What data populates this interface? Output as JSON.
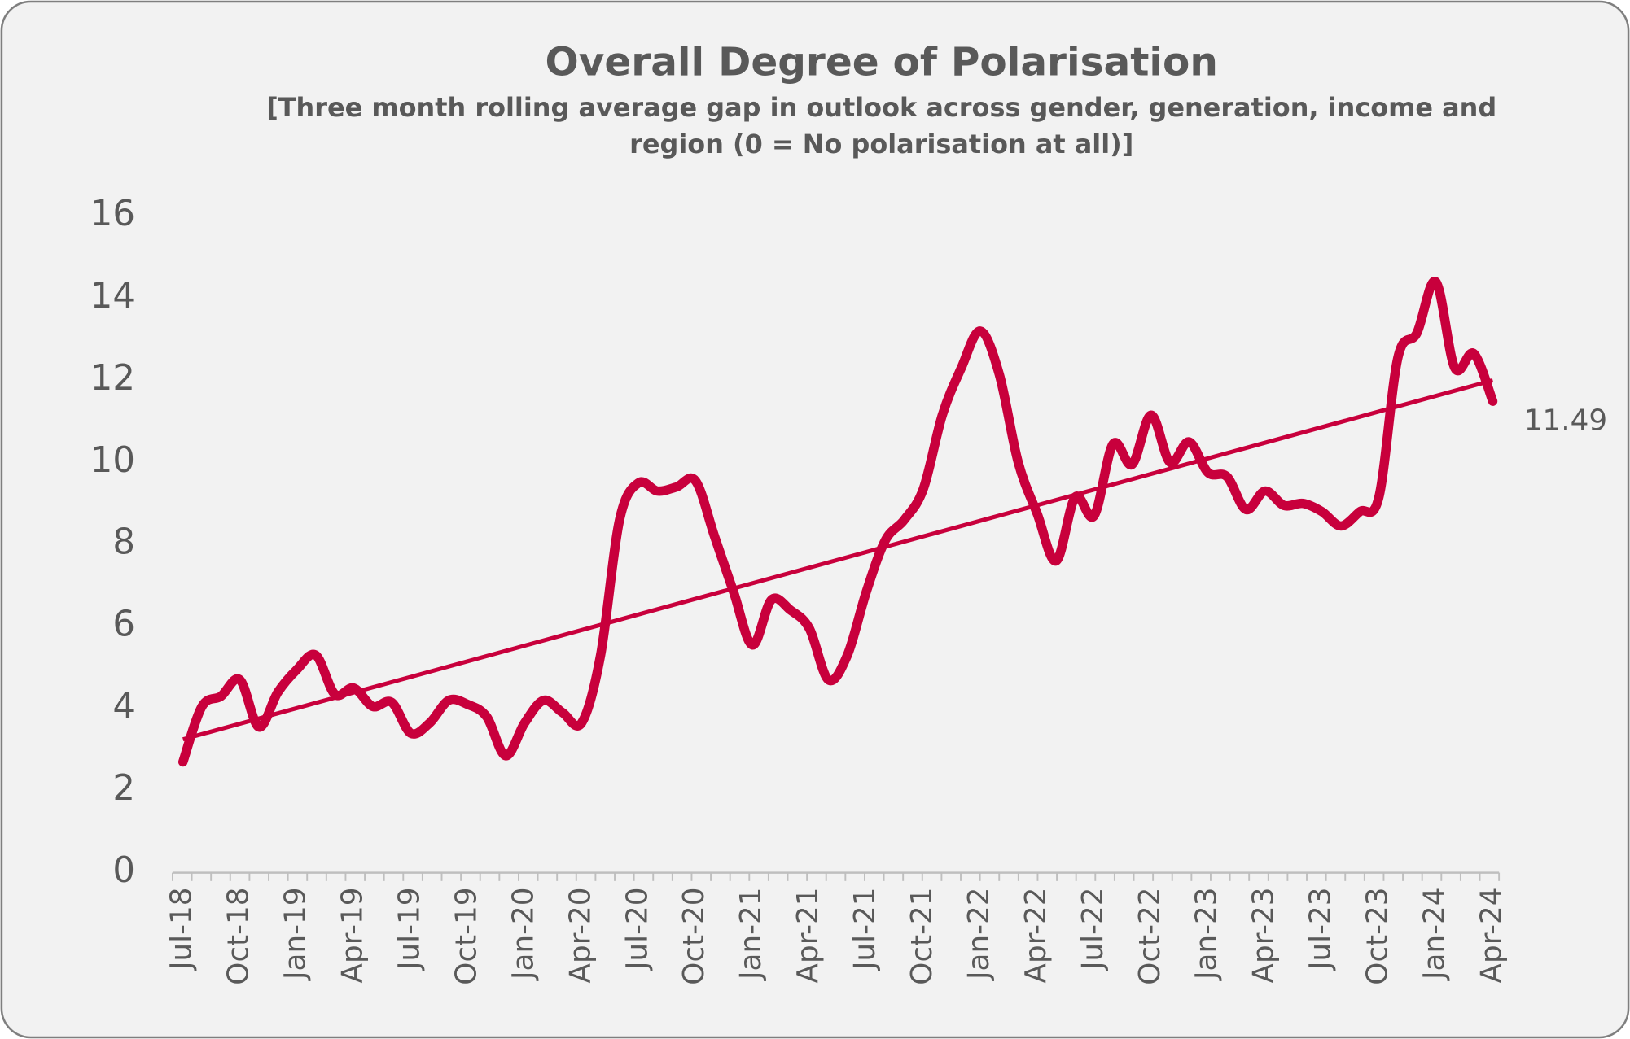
{
  "chart_data": {
    "type": "line",
    "title": "Overall Degree of Polarisation",
    "subtitle": [
      "[Three month rolling average gap in outlook across gender, generation, income and",
      "region (0 = No polarisation at all)]"
    ],
    "categories": [
      "Jul-18",
      null,
      null,
      "Oct-18",
      null,
      null,
      "Jan-19",
      null,
      null,
      "Apr-19",
      null,
      null,
      "Jul-19",
      null,
      null,
      "Oct-19",
      null,
      null,
      "Jan-20",
      null,
      null,
      "Apr-20",
      null,
      null,
      "Jul-20",
      null,
      null,
      "Oct-20",
      null,
      null,
      "Jan-21",
      null,
      null,
      "Apr-21",
      null,
      null,
      "Jul-21",
      null,
      null,
      "Oct-21",
      null,
      null,
      "Jan-22",
      null,
      null,
      "Apr-22",
      null,
      null,
      "Jul-22",
      null,
      null,
      "Oct-22",
      null,
      null,
      "Jan-23",
      null,
      null,
      "Apr-23",
      null,
      null,
      "Jul-23",
      null,
      null,
      "Oct-23",
      null,
      null,
      "Jan-24",
      null,
      null,
      "Apr-24"
    ],
    "series": [
      {
        "color": "#c8003c",
        "values": [
          2.7,
          4.05,
          4.3,
          4.7,
          3.55,
          4.4,
          4.95,
          5.3,
          4.35,
          4.5,
          4.05,
          4.15,
          3.4,
          3.65,
          4.2,
          4.1,
          3.8,
          2.85,
          3.65,
          4.2,
          3.9,
          3.65,
          5.3,
          8.6,
          9.5,
          9.3,
          9.4,
          9.55,
          8.2,
          6.85,
          5.55,
          6.65,
          6.4,
          5.95,
          4.7,
          5.3,
          6.85,
          8.1,
          8.6,
          9.35,
          11.15,
          12.3,
          13.2,
          12.15,
          10.0,
          8.75,
          7.6,
          9.15,
          8.7,
          10.45,
          9.95,
          11.15,
          10.0,
          10.5,
          9.75,
          9.65,
          8.85,
          9.3,
          8.95,
          9.0,
          8.8,
          8.45,
          8.8,
          9.15,
          12.55,
          13.15,
          14.4,
          12.3,
          12.65,
          11.49
        ]
      }
    ],
    "trendline": [
      3.25,
      12.0
    ],
    "ylim": [
      0,
      16
    ],
    "yticks": [
      0,
      2,
      4,
      6,
      8,
      10,
      12,
      14,
      16
    ],
    "grid": false
  }
}
